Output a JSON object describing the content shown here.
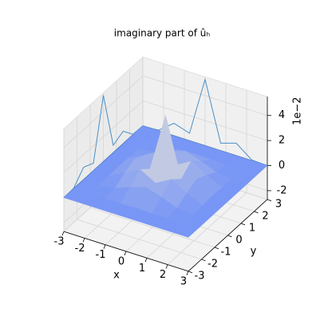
{
  "chart_data": {
    "type": "surface3d",
    "title": "imaginary part of ûₕ",
    "xlabel": "x",
    "ylabel": "y",
    "z_offset_label": "1e−2",
    "x": [
      -3,
      -2.25,
      -1.5,
      -0.75,
      0,
      0.75,
      1.5,
      2.25,
      3
    ],
    "y": [
      -3,
      -2.25,
      -1.5,
      -0.75,
      0,
      0.75,
      1.5,
      2.25,
      3
    ],
    "z": [
      [
        0,
        0,
        0,
        0,
        0,
        0,
        0,
        0,
        0
      ],
      [
        0,
        0,
        0,
        0,
        0.05,
        0,
        0,
        0,
        0
      ],
      [
        0,
        0,
        0.1,
        0.6,
        1.0,
        0.6,
        0.1,
        0,
        0
      ],
      [
        0,
        0,
        0.6,
        1.3,
        0.6,
        1.3,
        0.6,
        0,
        0
      ],
      [
        0,
        0.05,
        1.0,
        0.6,
        5.3,
        0.6,
        1.0,
        0.05,
        0
      ],
      [
        0,
        0,
        0.6,
        1.3,
        0.6,
        1.3,
        0.6,
        0,
        0
      ],
      [
        0,
        0,
        0.1,
        0.6,
        1.0,
        0.6,
        0.1,
        0,
        0
      ],
      [
        0,
        0,
        0,
        0,
        0.05,
        0,
        0,
        0,
        0
      ],
      [
        0,
        0,
        0,
        0,
        0,
        0,
        0,
        0,
        0
      ]
    ],
    "colormap": "coolwarm",
    "projection_color": "#4a90c8",
    "xlim": [
      -3,
      3
    ],
    "ylim": [
      -3,
      3
    ],
    "zlim": [
      -2.7,
      5.5
    ],
    "xticks": [
      -3,
      -2,
      -1,
      0,
      1,
      2,
      3
    ],
    "yticks": [
      -3,
      -2,
      -1,
      0,
      1,
      2,
      3
    ],
    "zticks": [
      -2,
      0,
      2,
      4
    ],
    "grid": true
  }
}
